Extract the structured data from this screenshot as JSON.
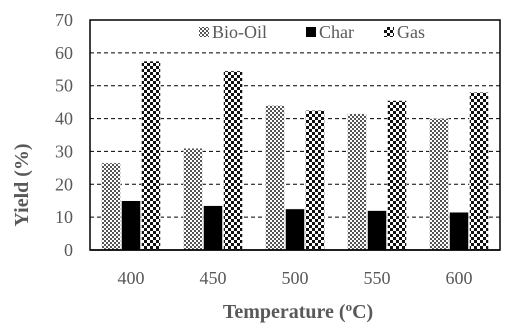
{
  "chart_data": {
    "type": "bar",
    "title": "",
    "xlabel": "Temperature (",
    "xlabel_sup": "o",
    "xlabel_suffix": "C)",
    "ylabel": "Yield (%)",
    "categories": [
      "400",
      "450",
      "500",
      "550",
      "600"
    ],
    "series": [
      {
        "name": "Bio-Oil",
        "values": [
          26.5,
          31,
          44,
          41.5,
          40
        ],
        "pattern": "fine-check"
      },
      {
        "name": "Char",
        "values": [
          15,
          13.5,
          12.5,
          12,
          11.5
        ],
        "pattern": "solid-black"
      },
      {
        "name": "Gas",
        "values": [
          57.5,
          54.5,
          42.5,
          45.5,
          48
        ],
        "pattern": "coarse-check"
      }
    ],
    "ylim": [
      0,
      70
    ],
    "yticks": [
      "0",
      "10",
      "20",
      "30",
      "40",
      "50",
      "60",
      "70"
    ],
    "grid": "dashed-horizontal",
    "legend": "top-center"
  }
}
